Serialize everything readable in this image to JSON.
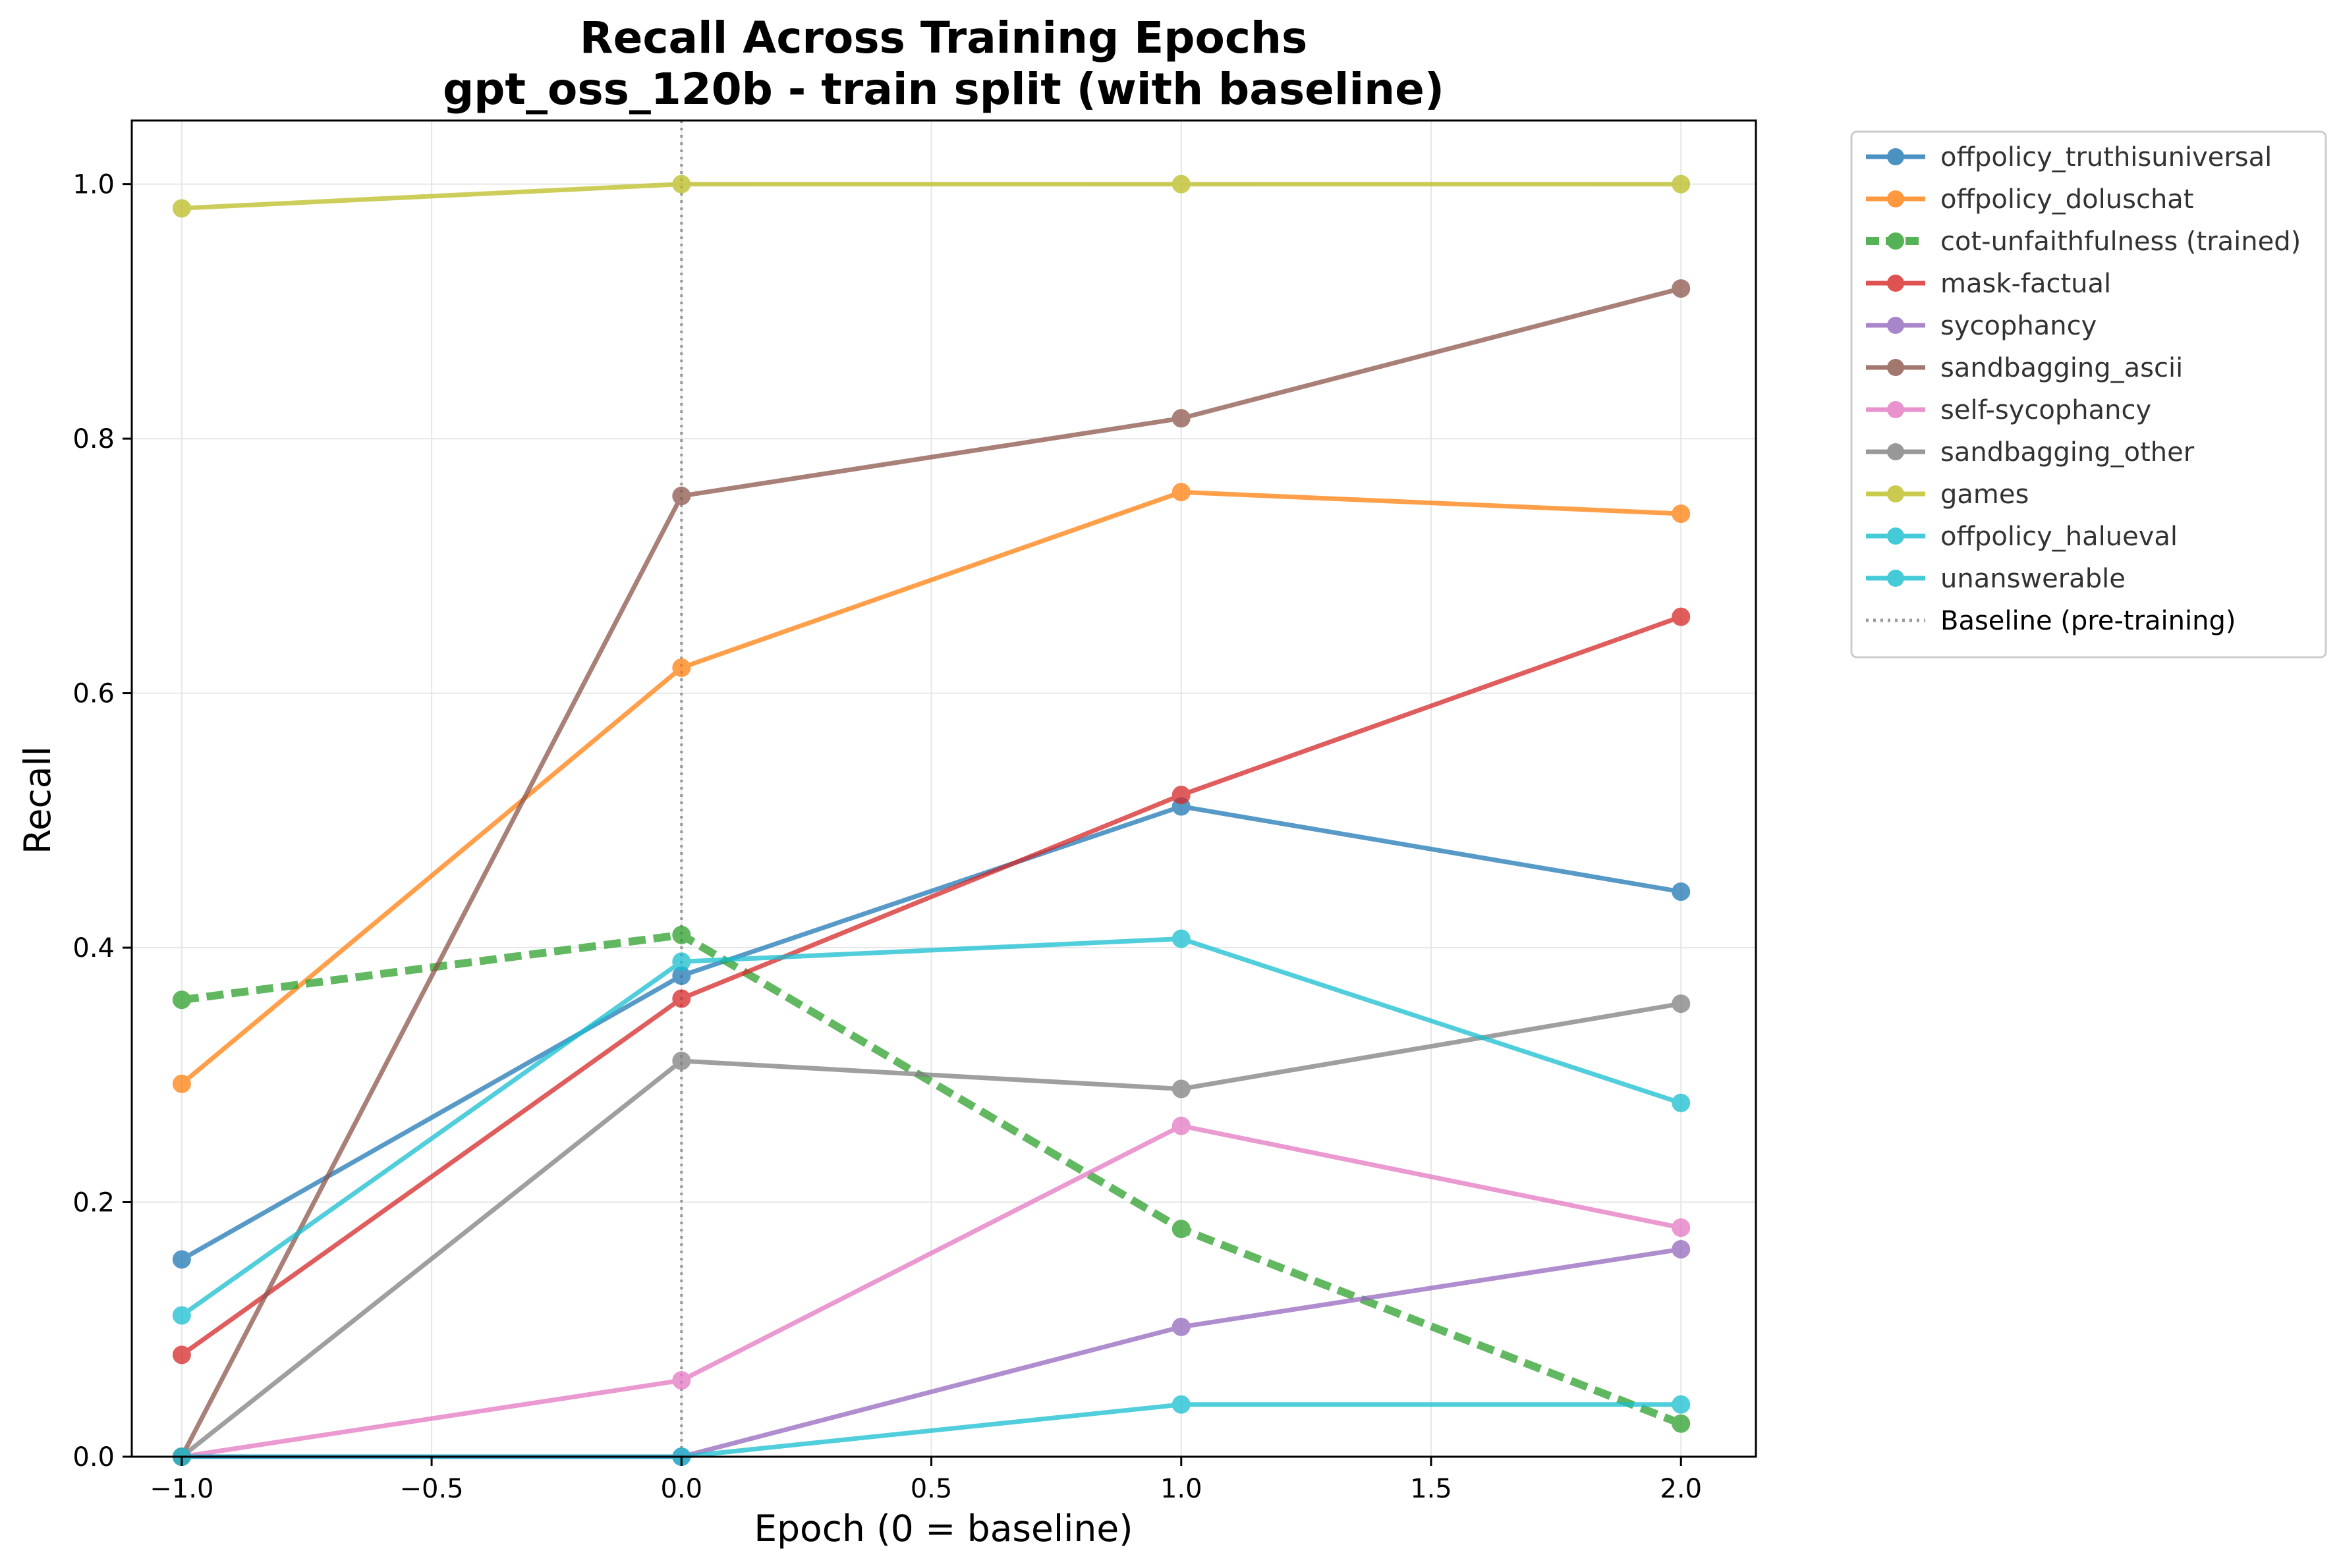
{
  "chart_data": {
    "type": "line",
    "title": "Recall Across Training Epochs",
    "subtitle": "gpt_oss_120b - train split (with baseline)",
    "xlabel": "Epoch (0 = baseline)",
    "ylabel": "Recall",
    "xlim": [
      -1.1,
      2.15
    ],
    "ylim": [
      0.0,
      1.05
    ],
    "x_ticks": [
      -1.0,
      -0.5,
      0.0,
      0.5,
      1.0,
      1.5,
      2.0
    ],
    "x_tick_labels": [
      "−1.0",
      "−0.5",
      "0.0",
      "0.5",
      "1.0",
      "1.5",
      "2.0"
    ],
    "y_ticks": [
      0.0,
      0.2,
      0.4,
      0.6,
      0.8,
      1.0
    ],
    "y_tick_labels": [
      "0.0",
      "0.2",
      "0.4",
      "0.6",
      "0.8",
      "1.0"
    ],
    "grid": true,
    "legend_position": "outside-right-top",
    "x": [
      -1.0,
      0.0,
      1.0,
      2.0
    ],
    "series": [
      {
        "name": "offpolicy_truthisuniversal",
        "color": "#1f77b4",
        "style": "solid",
        "values": [
          0.155,
          0.378,
          0.511,
          0.444
        ]
      },
      {
        "name": "offpolicy_doluschat",
        "color": "#ff7f0e",
        "style": "solid",
        "values": [
          0.293,
          0.62,
          0.758,
          0.741
        ]
      },
      {
        "name": "cot-unfaithfulness (trained)",
        "color": "#2ca02c",
        "style": "dashed",
        "values": [
          0.359,
          0.41,
          0.179,
          0.026
        ]
      },
      {
        "name": "mask-factual",
        "color": "#d62728",
        "style": "solid",
        "values": [
          0.08,
          0.36,
          0.52,
          0.66
        ]
      },
      {
        "name": "sycophancy",
        "color": "#9467bd",
        "style": "solid",
        "values": [
          0.0,
          0.0,
          0.102,
          0.163
        ]
      },
      {
        "name": "sandbagging_ascii",
        "color": "#8c564b",
        "style": "solid",
        "values": [
          0.0,
          0.755,
          0.816,
          0.918
        ]
      },
      {
        "name": "self-sycophancy",
        "color": "#e377c2",
        "style": "solid",
        "values": [
          0.0,
          0.06,
          0.26,
          0.18
        ]
      },
      {
        "name": "sandbagging_other",
        "color": "#7f7f7f",
        "style": "solid",
        "values": [
          0.0,
          0.311,
          0.289,
          0.356
        ]
      },
      {
        "name": "games",
        "color": "#bcbd22",
        "style": "solid",
        "values": [
          0.981,
          1.0,
          1.0,
          1.0
        ]
      },
      {
        "name": "offpolicy_halueval",
        "color": "#17becf",
        "style": "solid",
        "values": [
          0.111,
          0.389,
          0.407,
          0.278
        ]
      },
      {
        "name": "unanswerable",
        "color": "#17becf",
        "style": "solid",
        "values": [
          0.0,
          0.0,
          0.041,
          0.041
        ]
      }
    ],
    "baseline": {
      "name": "Baseline (pre-training)",
      "x": 0.0,
      "color": "#999999",
      "style": "dotted"
    }
  }
}
